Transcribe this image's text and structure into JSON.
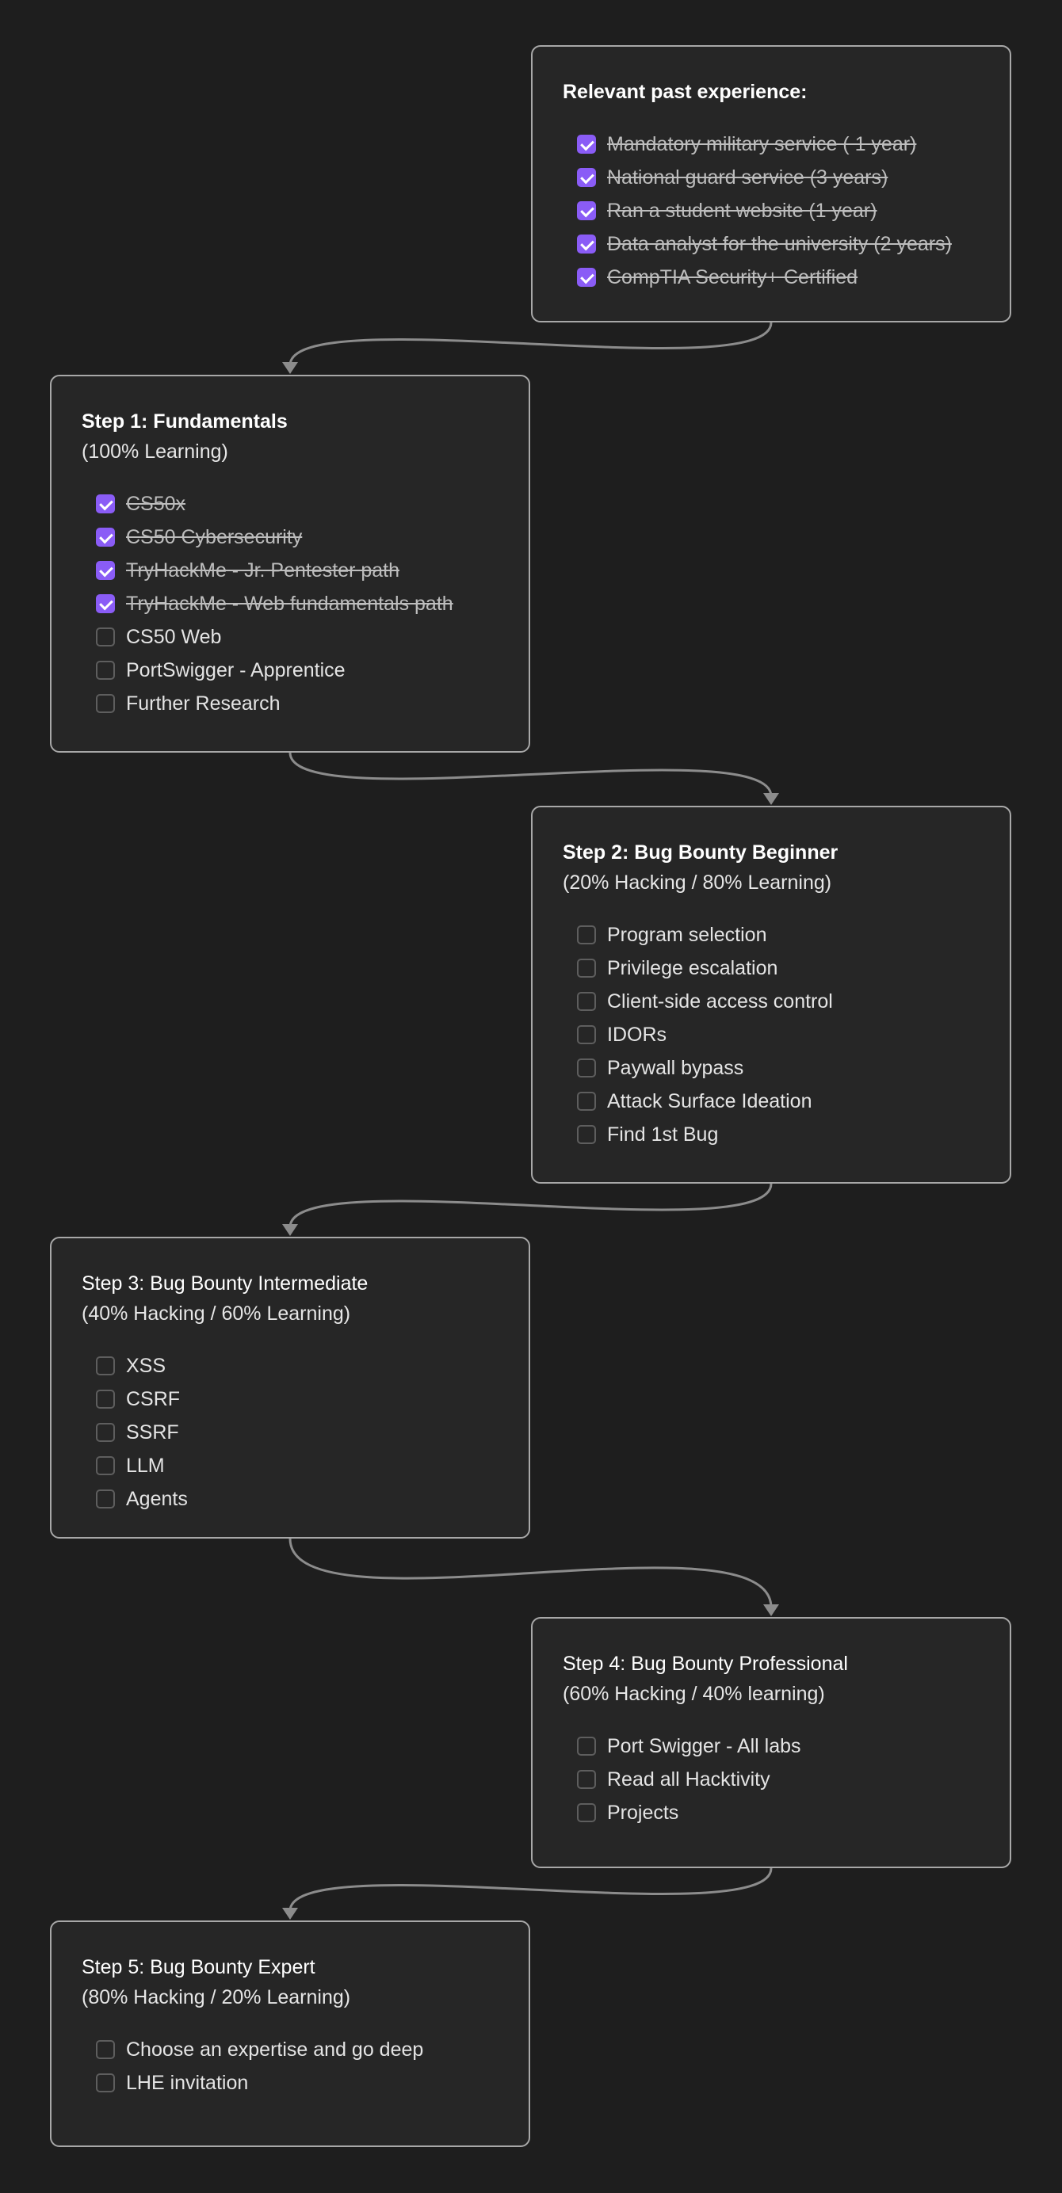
{
  "colors": {
    "background": "#1e1e1e",
    "card": "#262626",
    "card_border": "#a8a8a8",
    "checkbox_checked": "#8a5cf6",
    "connector": "#8c8c8c"
  },
  "cards": [
    {
      "id": "past-experience",
      "title": "Relevant past experience:",
      "title_bold": true,
      "subtitle": "",
      "items": [
        {
          "label": "Mandatory military service ( 1 year)",
          "done": true
        },
        {
          "label": "National guard service (3 years)",
          "done": true
        },
        {
          "label": "Ran a student website (1 year)",
          "done": true
        },
        {
          "label": "Data analyst for the university (2 years)",
          "done": true
        },
        {
          "label": "CompTIA Security+ Certified",
          "done": true
        }
      ]
    },
    {
      "id": "step-1",
      "title": "Step 1: Fundamentals",
      "title_bold": true,
      "subtitle": "(100% Learning)",
      "items": [
        {
          "label": "CS50x",
          "done": true
        },
        {
          "label": "CS50 Cybersecurity",
          "done": true
        },
        {
          "label": "TryHackMe - Jr. Pentester path",
          "done": true
        },
        {
          "label": "TryHackMe - Web fundamentals path",
          "done": true
        },
        {
          "label": "CS50 Web",
          "done": false
        },
        {
          "label": "PortSwigger - Apprentice",
          "done": false
        },
        {
          "label": "Further Research",
          "done": false
        }
      ]
    },
    {
      "id": "step-2",
      "title": "Step 2: Bug Bounty Beginner",
      "title_bold": true,
      "subtitle": "(20% Hacking / 80% Learning)",
      "items": [
        {
          "label": "Program selection",
          "done": false
        },
        {
          "label": "Privilege escalation",
          "done": false
        },
        {
          "label": "Client-side access control",
          "done": false
        },
        {
          "label": "IDORs",
          "done": false
        },
        {
          "label": "Paywall bypass",
          "done": false
        },
        {
          "label": "Attack Surface Ideation",
          "done": false
        },
        {
          "label": "Find 1st Bug",
          "done": false
        }
      ]
    },
    {
      "id": "step-3",
      "title": "Step 3: Bug Bounty Intermediate",
      "title_bold": false,
      "subtitle": "(40% Hacking / 60% Learning)",
      "items": [
        {
          "label": "XSS",
          "done": false
        },
        {
          "label": "CSRF",
          "done": false
        },
        {
          "label": "SSRF",
          "done": false
        },
        {
          "label": "LLM",
          "done": false
        },
        {
          "label": "Agents",
          "done": false
        }
      ]
    },
    {
      "id": "step-4",
      "title": "Step 4: Bug Bounty Professional",
      "title_bold": false,
      "subtitle": "(60% Hacking / 40% learning)",
      "items": [
        {
          "label": "Port Swigger - All labs",
          "done": false
        },
        {
          "label": "Read all Hacktivity",
          "done": false
        },
        {
          "label": "Projects",
          "done": false
        }
      ]
    },
    {
      "id": "step-5",
      "title": "Step 5: Bug Bounty Expert",
      "title_bold": false,
      "subtitle": "(80% Hacking / 20% Learning)",
      "items": [
        {
          "label": "Choose an expertise and go deep",
          "done": false
        },
        {
          "label": "LHE invitation",
          "done": false
        }
      ]
    }
  ],
  "connections": [
    {
      "from": "past-experience",
      "to": "step-1"
    },
    {
      "from": "step-1",
      "to": "step-2"
    },
    {
      "from": "step-2",
      "to": "step-3"
    },
    {
      "from": "step-3",
      "to": "step-4"
    },
    {
      "from": "step-4",
      "to": "step-5"
    }
  ]
}
